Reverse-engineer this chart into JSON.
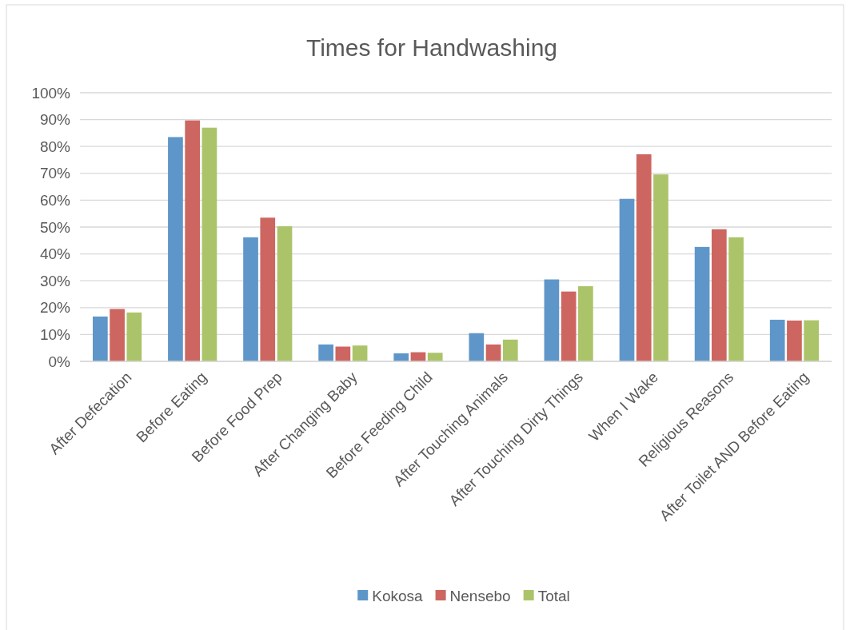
{
  "chart_data": {
    "type": "bar",
    "title": "Times for Handwashing",
    "categories": [
      "After Defecation",
      "Before Eating",
      "Before Food Prep",
      "After Changing Baby",
      "Before Feeding Child",
      "After Touching Animals",
      "After Touching Dirty Things",
      "When I Wake",
      "Religious Reasons",
      "After Toilet AND Before Eating"
    ],
    "series": [
      {
        "name": "Kokosa",
        "color": "#5f96c9",
        "values": [
          16.7,
          83.5,
          46.2,
          6.3,
          3.0,
          10.5,
          30.5,
          60.5,
          42.6,
          15.5
        ]
      },
      {
        "name": "Nensebo",
        "color": "#cd6660",
        "values": [
          19.5,
          89.7,
          53.5,
          5.5,
          3.4,
          6.3,
          26.0,
          77.1,
          49.2,
          15.2
        ]
      },
      {
        "name": "Total",
        "color": "#abc46a",
        "values": [
          18.2,
          87.0,
          50.3,
          5.9,
          3.2,
          8.1,
          28.0,
          69.6,
          46.2,
          15.3
        ]
      }
    ],
    "ylim": [
      0,
      100
    ],
    "yticks": [
      {
        "value": 0,
        "label": "0%"
      },
      {
        "value": 10,
        "label": "10%"
      },
      {
        "value": 20,
        "label": "20%"
      },
      {
        "value": 30,
        "label": "30%"
      },
      {
        "value": 40,
        "label": "40%"
      },
      {
        "value": 50,
        "label": "50%"
      },
      {
        "value": 60,
        "label": "60%"
      },
      {
        "value": 70,
        "label": "70%"
      },
      {
        "value": 80,
        "label": "80%"
      },
      {
        "value": 90,
        "label": "90%"
      },
      {
        "value": 100,
        "label": "100%"
      }
    ],
    "grid": "y",
    "legend": "bottom"
  }
}
